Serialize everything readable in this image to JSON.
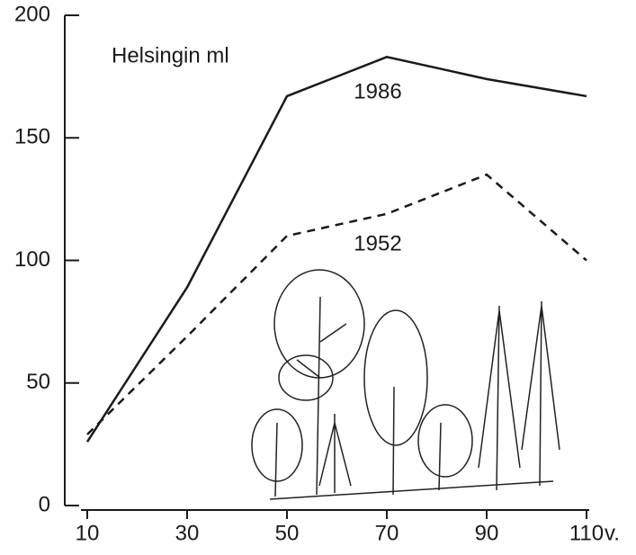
{
  "chart_data": {
    "type": "line",
    "annotation": "Helsingin ml",
    "x_label": "v.",
    "x": [
      10,
      30,
      50,
      70,
      90,
      110
    ],
    "series": [
      {
        "name": "1986",
        "color": "#1a1a1a",
        "linestyle": "solid",
        "values": [
          26,
          89,
          167,
          183,
          174,
          167
        ]
      },
      {
        "name": "1952",
        "color": "#1a1a1a",
        "linestyle": "dashed",
        "values": [
          29,
          69,
          110,
          119,
          135,
          100
        ]
      }
    ],
    "xlim": [
      10,
      110
    ],
    "xticks": [
      10,
      30,
      50,
      70,
      90,
      110
    ],
    "ylim": [
      0,
      200
    ],
    "yticks": [
      0,
      50,
      100,
      150,
      200
    ],
    "grid": false
  }
}
